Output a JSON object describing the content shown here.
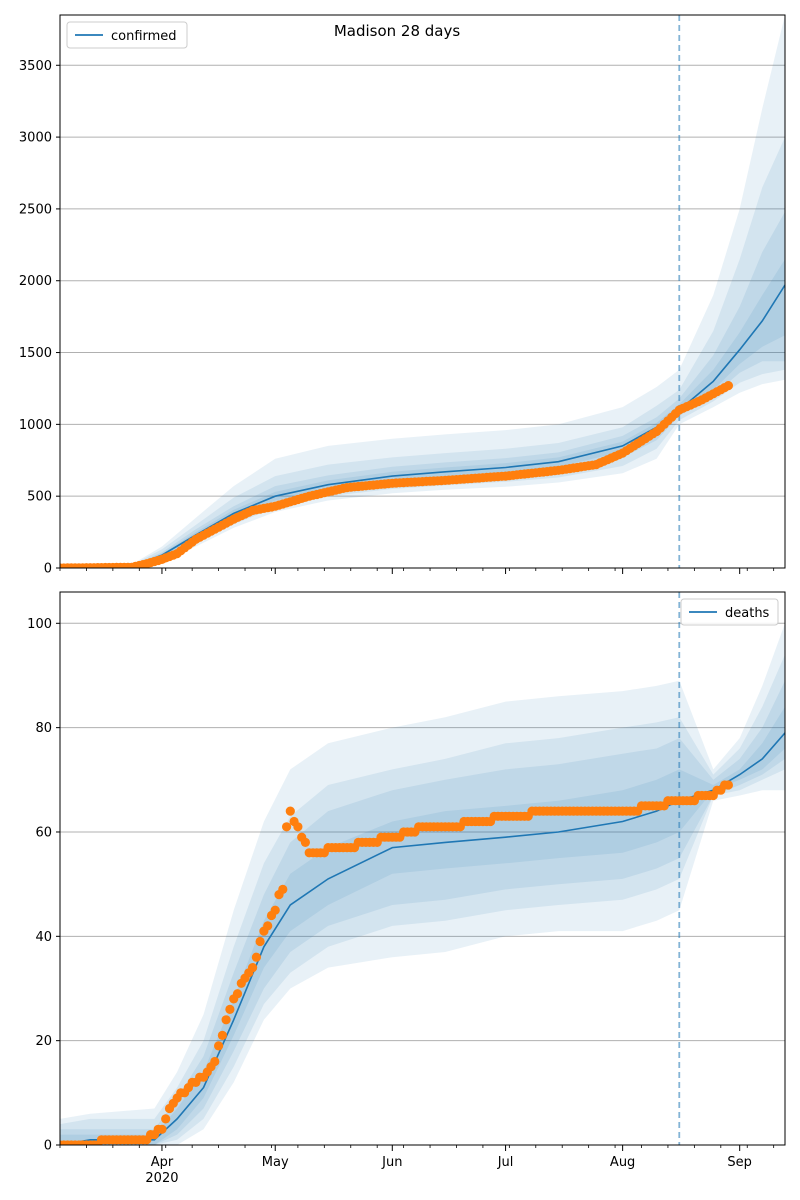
{
  "title": "Madison 28 days",
  "colors": {
    "model": "#1f77b4",
    "observed": "#ff7f0e",
    "grid": "#b0b0b0",
    "band": "#1f77b4"
  },
  "x_axis": {
    "start": "2020-03-05",
    "end": "2020-09-13",
    "month_ticks": [
      {
        "date": "2020-04-01",
        "label": "Apr",
        "sublabel": "2020"
      },
      {
        "date": "2020-05-01",
        "label": "May",
        "sublabel": ""
      },
      {
        "date": "2020-06-01",
        "label": "Jun",
        "sublabel": ""
      },
      {
        "date": "2020-07-01",
        "label": "Jul",
        "sublabel": ""
      },
      {
        "date": "2020-08-01",
        "label": "Aug",
        "sublabel": ""
      },
      {
        "date": "2020-09-01",
        "label": "Sep",
        "sublabel": ""
      }
    ],
    "forecast_start": "2020-08-16"
  },
  "chart_data": [
    {
      "type": "line",
      "name": "confirmed",
      "legend": "top-left",
      "grid": "y",
      "ylim": [
        0,
        3850
      ],
      "yticks": [
        0,
        500,
        1000,
        1500,
        2000,
        2500,
        3000,
        3500
      ],
      "model": {
        "x": [
          "2020-03-05",
          "2020-03-25",
          "2020-04-01",
          "2020-04-10",
          "2020-04-20",
          "2020-05-01",
          "2020-05-15",
          "2020-06-01",
          "2020-06-15",
          "2020-07-01",
          "2020-07-15",
          "2020-08-01",
          "2020-08-10",
          "2020-08-16",
          "2020-08-25",
          "2020-09-01",
          "2020-09-07",
          "2020-09-13"
        ],
        "y": [
          0,
          20,
          90,
          230,
          380,
          500,
          580,
          640,
          670,
          700,
          740,
          850,
          980,
          1100,
          1300,
          1520,
          1720,
          1970
        ]
      },
      "bands": [
        {
          "lower": [
            0,
            10,
            50,
            150,
            280,
            390,
            470,
            520,
            545,
            565,
            595,
            660,
            760,
            1000,
            1120,
            1220,
            1280,
            1310
          ],
          "upper": [
            0,
            40,
            150,
            350,
            570,
            760,
            850,
            900,
            930,
            960,
            1000,
            1120,
            1260,
            1380,
            1900,
            2500,
            3200,
            3850
          ]
        },
        {
          "lower": [
            0,
            12,
            60,
            170,
            305,
            420,
            500,
            550,
            575,
            600,
            630,
            710,
            830,
            1030,
            1160,
            1290,
            1350,
            1380
          ],
          "upper": [
            0,
            33,
            130,
            300,
            490,
            640,
            720,
            770,
            800,
            830,
            870,
            980,
            1130,
            1240,
            1650,
            2150,
            2650,
            3000
          ]
        },
        {
          "lower": [
            0,
            15,
            70,
            190,
            335,
            450,
            530,
            585,
            610,
            640,
            675,
            770,
            890,
            1060,
            1200,
            1360,
            1440,
            1440
          ],
          "upper": [
            0,
            27,
            110,
            270,
            430,
            570,
            645,
            705,
            735,
            765,
            805,
            920,
            1050,
            1180,
            1480,
            1820,
            2200,
            2480
          ]
        },
        {
          "lower": [
            0,
            17,
            78,
            205,
            355,
            470,
            555,
            610,
            640,
            670,
            705,
            810,
            930,
            1080,
            1240,
            1420,
            1540,
            1620
          ],
          "upper": [
            0,
            23,
            100,
            250,
            405,
            530,
            610,
            670,
            700,
            730,
            770,
            880,
            1010,
            1140,
            1380,
            1640,
            1900,
            2150
          ]
        }
      ],
      "observed": {
        "x": [
          "2020-03-05",
          "2020-03-24",
          "2020-03-28",
          "2020-04-01",
          "2020-04-05",
          "2020-04-10",
          "2020-04-15",
          "2020-04-20",
          "2020-04-25",
          "2020-05-01",
          "2020-05-10",
          "2020-05-20",
          "2020-06-01",
          "2020-06-15",
          "2020-07-01",
          "2020-07-15",
          "2020-07-25",
          "2020-08-01",
          "2020-08-10",
          "2020-08-16",
          "2020-08-22",
          "2020-08-29"
        ],
        "y": [
          0,
          5,
          30,
          60,
          100,
          200,
          270,
          340,
          400,
          430,
          500,
          560,
          590,
          610,
          640,
          680,
          720,
          800,
          950,
          1100,
          1170,
          1270
        ]
      }
    },
    {
      "type": "line",
      "name": "deaths",
      "legend": "top-right",
      "grid": "y",
      "ylim": [
        0,
        106
      ],
      "yticks": [
        0,
        20,
        40,
        60,
        80,
        100
      ],
      "model": {
        "x": [
          "2020-03-05",
          "2020-03-13",
          "2020-03-30",
          "2020-04-05",
          "2020-04-12",
          "2020-04-20",
          "2020-04-28",
          "2020-05-05",
          "2020-05-15",
          "2020-06-01",
          "2020-06-15",
          "2020-07-01",
          "2020-07-15",
          "2020-08-01",
          "2020-08-10",
          "2020-08-16",
          "2020-08-25",
          "2020-09-01",
          "2020-09-07",
          "2020-09-13"
        ],
        "y": [
          0,
          1,
          1,
          5,
          11,
          24,
          38,
          46,
          51,
          57,
          58,
          59,
          60,
          62,
          64,
          66,
          68,
          71,
          74,
          79
        ]
      },
      "bands": [
        {
          "lower": [
            0,
            0,
            0,
            0,
            3,
            12,
            24,
            30,
            34,
            36,
            37,
            40,
            41,
            41,
            43,
            45,
            66,
            67,
            68,
            68
          ],
          "upper": [
            5,
            6,
            7,
            14,
            25,
            45,
            62,
            72,
            77,
            80,
            82,
            85,
            86,
            87,
            88,
            89,
            72,
            78,
            88,
            100
          ]
        },
        {
          "lower": [
            0,
            0,
            0,
            1,
            5,
            15,
            27,
            33,
            38,
            42,
            43,
            45,
            46,
            47,
            49,
            51,
            67,
            68,
            70,
            72
          ],
          "upper": [
            4,
            5,
            5,
            11,
            20,
            38,
            54,
            63,
            69,
            72,
            74,
            77,
            78,
            80,
            81,
            82,
            71,
            76,
            84,
            94
          ]
        },
        {
          "lower": [
            0,
            0,
            0,
            2,
            7,
            18,
            30,
            37,
            42,
            46,
            47,
            49,
            50,
            51,
            53,
            55,
            67,
            69,
            71,
            74
          ],
          "upper": [
            3,
            3,
            3,
            9,
            17,
            33,
            48,
            58,
            64,
            68,
            70,
            72,
            73,
            75,
            76,
            78,
            70,
            74,
            80,
            89
          ]
        },
        {
          "lower": [
            0,
            0,
            0,
            3,
            9,
            21,
            34,
            41,
            46,
            52,
            53,
            54,
            55,
            56,
            58,
            60,
            68,
            70,
            72,
            76
          ],
          "upper": [
            2,
            2,
            2,
            7,
            14,
            28,
            43,
            52,
            57,
            62,
            64,
            65,
            66,
            68,
            70,
            72,
            69,
            72,
            77,
            84
          ]
        }
      ],
      "observed": {
        "x": [
          "2020-03-05",
          "2020-03-27",
          "2020-04-01",
          "2020-04-03",
          "2020-04-05",
          "2020-04-08",
          "2020-04-12",
          "2020-04-15",
          "2020-04-18",
          "2020-04-20",
          "2020-04-23",
          "2020-04-25",
          "2020-04-28",
          "2020-05-01",
          "2020-05-02",
          "2020-05-03",
          "2020-05-04",
          "2020-05-05",
          "2020-05-10",
          "2020-05-20",
          "2020-06-01",
          "2020-06-10",
          "2020-06-15",
          "2020-06-25",
          "2020-07-01",
          "2020-07-15",
          "2020-08-01",
          "2020-08-10",
          "2020-08-16",
          "2020-08-25",
          "2020-08-29"
        ],
        "y": [
          0,
          1,
          3,
          7,
          9,
          11,
          13,
          16,
          24,
          28,
          32,
          34,
          41,
          45,
          48,
          49,
          61,
          64,
          56,
          57,
          59,
          61,
          61,
          62,
          63,
          64,
          64,
          65,
          66,
          67,
          69
        ]
      }
    }
  ]
}
